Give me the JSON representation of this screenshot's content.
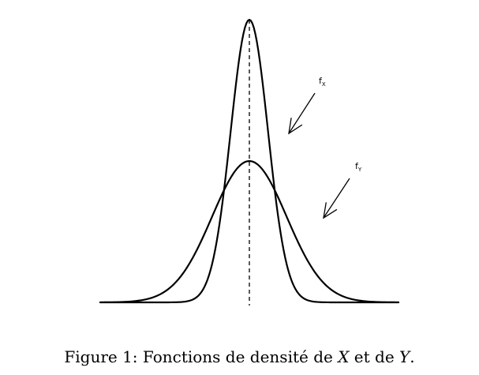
{
  "figure": {
    "caption": {
      "prefix": "Figure 1: Fonctions de densité de ",
      "var_x": "X",
      "middle": " et de ",
      "var_y": "Y",
      "suffix": "."
    }
  },
  "chart_data": {
    "type": "line",
    "title": "",
    "xlabel": "",
    "ylabel": "",
    "axes_visible": false,
    "grid": false,
    "xlim": [
      -4,
      4
    ],
    "ylim": [
      0,
      0.8
    ],
    "mean": 0,
    "series": [
      {
        "name": "f_X",
        "distribution": "normal",
        "mean": 0,
        "sd": 0.5,
        "color": "#000000"
      },
      {
        "name": "f_Y",
        "distribution": "normal",
        "mean": 0,
        "sd": 1,
        "color": "#000000"
      }
    ],
    "annotations": [
      {
        "series": "f_X",
        "label": "f",
        "subscript": "X"
      },
      {
        "series": "f_Y",
        "label": "f",
        "subscript": "Y"
      }
    ],
    "reference_line": {
      "type": "vertical",
      "x": 0,
      "style": "dashed"
    }
  }
}
